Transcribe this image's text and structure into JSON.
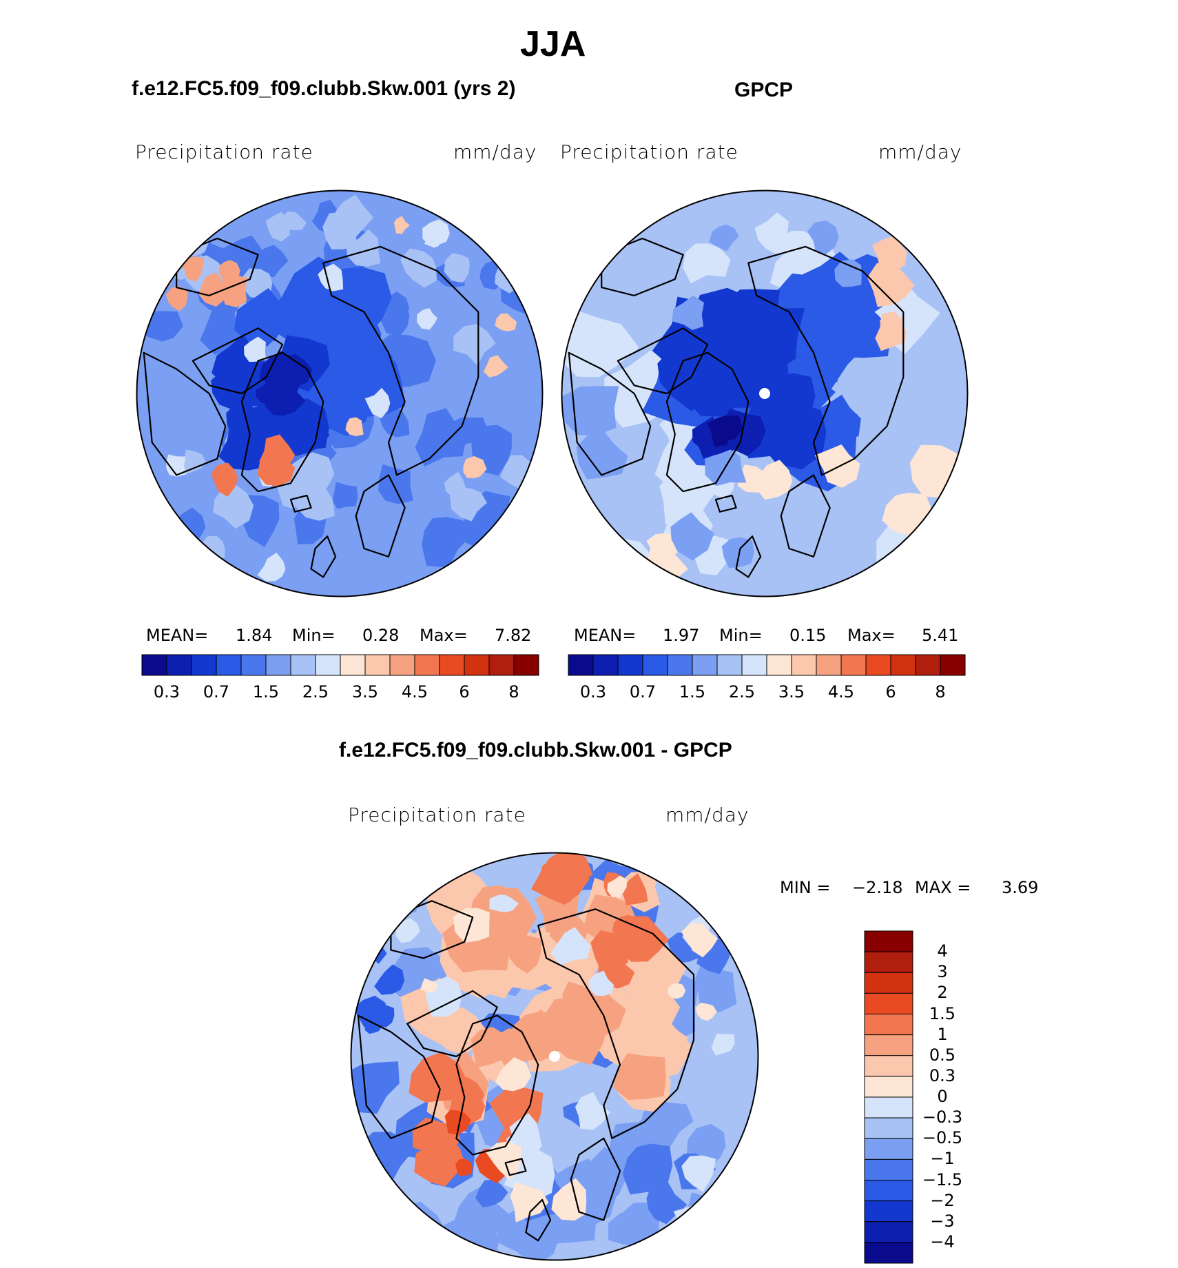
{
  "title": "JJA",
  "panels": [
    {
      "id": "model",
      "heading": "f.e12.FC5.f09_f09.clubb.Skw.001 (yrs 2)",
      "variable": "Precipitation rate",
      "units": "mm/day",
      "stats": {
        "mean_label": "MEAN=",
        "mean": "1.84",
        "min_label": "Min=",
        "min": "0.28",
        "max_label": "Max=",
        "max": "7.82"
      },
      "colorbar_ticks": [
        "0.3",
        "0.7",
        "1.5",
        "2.5",
        "3.5",
        "4.5",
        "6",
        "8"
      ]
    },
    {
      "id": "obs",
      "heading": "GPCP",
      "variable": "Precipitation rate",
      "units": "mm/day",
      "stats": {
        "mean_label": "MEAN=",
        "mean": "1.97",
        "min_label": "Min=",
        "min": "0.15",
        "max_label": "Max=",
        "max": "5.41"
      },
      "colorbar_ticks": [
        "0.3",
        "0.7",
        "1.5",
        "2.5",
        "3.5",
        "4.5",
        "6",
        "8"
      ]
    },
    {
      "id": "diff",
      "heading": "f.e12.FC5.f09_f09.clubb.Skw.001 - GPCP",
      "variable": "Precipitation rate",
      "units": "mm/day",
      "stats": {
        "min_label": "MIN =",
        "min": "−2.18",
        "max_label": "MAX =",
        "max": "3.69"
      },
      "colorbar_ticks": [
        "4",
        "3",
        "2",
        "1.5",
        "1",
        "0.5",
        "0.3",
        "0",
        "−0.3",
        "−0.5",
        "−1",
        "−1.5",
        "−2",
        "−3",
        "−4"
      ]
    }
  ],
  "colors": {
    "abs_scale": [
      "#0a0a8c",
      "#0c1fb0",
      "#1238d0",
      "#2a5ae6",
      "#4a78ec",
      "#7b9ff2",
      "#a9c2f6",
      "#d6e4fb",
      "#fde6d6",
      "#fbc7ad",
      "#f6a281",
      "#f2764f",
      "#ea4a22",
      "#d2320f",
      "#b01e0e",
      "#880000"
    ],
    "diff_scale": [
      "#880000",
      "#b01e0e",
      "#d2320f",
      "#ea4a22",
      "#f2764f",
      "#f6a281",
      "#fbc7ad",
      "#fde6d6",
      "#d6e4fb",
      "#a9c2f6",
      "#7b9ff2",
      "#4a78ec",
      "#2a5ae6",
      "#1238d0",
      "#0c1fb0",
      "#0a0a8c"
    ],
    "pole_marker": "#ffffff",
    "coast": "#000000"
  }
}
